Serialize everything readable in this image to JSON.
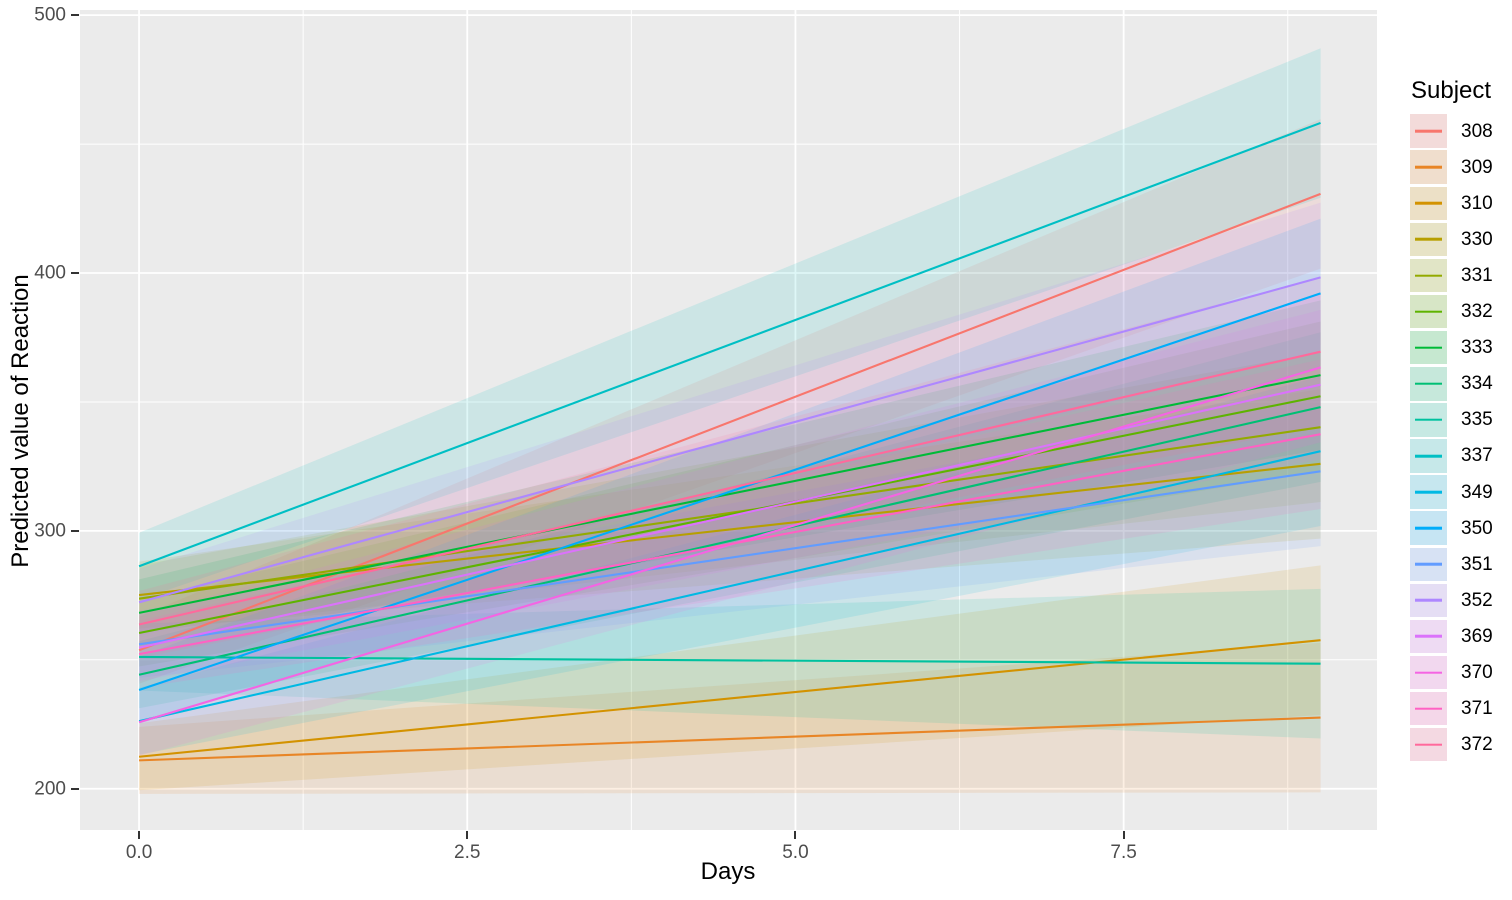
{
  "figure": {
    "background": "#FFFFFF",
    "panel_background": "#EBEBEB",
    "grid_color": "#FFFFFF",
    "axis_tick_color": "#333333",
    "tick_label_color": "#4D4D4D",
    "title_color": "#000000"
  },
  "chart_data": {
    "type": "line",
    "title": "",
    "xlabel": "Days",
    "ylabel": "Predicted value of Reaction",
    "legend_title": "Subject",
    "legend_position": "right",
    "grid": true,
    "xlim": [
      -0.45,
      9.43
    ],
    "ylim": [
      184,
      502
    ],
    "x": [
      0,
      9
    ],
    "x_major_ticks": [
      {
        "value": 0.0,
        "label": "0.0"
      },
      {
        "value": 2.5,
        "label": "2.5"
      },
      {
        "value": 5.0,
        "label": "5.0"
      },
      {
        "value": 7.5,
        "label": "7.5"
      }
    ],
    "x_minor_ticks": [
      1.25,
      3.75,
      6.25,
      8.75
    ],
    "y_major_ticks": [
      {
        "value": 200,
        "label": "200"
      },
      {
        "value": 300,
        "label": "300"
      },
      {
        "value": 400,
        "label": "400"
      },
      {
        "value": 500,
        "label": "500"
      }
    ],
    "y_minor_ticks": [
      250,
      350,
      450
    ],
    "ribbon_alpha": 0.13,
    "legend_swatch_alpha": 0.18,
    "line_width": 2.1,
    "series": [
      {
        "name": "308",
        "color": "#F8766D",
        "y": [
          253.7,
          430.7
        ],
        "ribbon_lower": [
          240.7,
          401.7
        ],
        "ribbon_upper": [
          266.7,
          459.7
        ]
      },
      {
        "name": "309",
        "color": "#E88526",
        "y": [
          211.0,
          227.6
        ],
        "ribbon_lower": [
          198.0,
          198.6
        ],
        "ribbon_upper": [
          224.0,
          256.6
        ]
      },
      {
        "name": "310",
        "color": "#D39200",
        "y": [
          212.4,
          257.6
        ],
        "ribbon_lower": [
          199.4,
          228.6
        ],
        "ribbon_upper": [
          225.4,
          286.6
        ]
      },
      {
        "name": "330",
        "color": "#B79F00",
        "y": [
          275.1,
          326.0
        ],
        "ribbon_lower": [
          262.1,
          297.0
        ],
        "ribbon_upper": [
          288.1,
          355.0
        ]
      },
      {
        "name": "331",
        "color": "#93AA00",
        "y": [
          273.7,
          340.2
        ],
        "ribbon_lower": [
          260.7,
          311.2
        ],
        "ribbon_upper": [
          286.7,
          369.2
        ]
      },
      {
        "name": "332",
        "color": "#5EB300",
        "y": [
          260.4,
          352.2
        ],
        "ribbon_lower": [
          247.4,
          323.2
        ],
        "ribbon_upper": [
          273.4,
          381.2
        ]
      },
      {
        "name": "333",
        "color": "#00BA38",
        "y": [
          268.2,
          360.4
        ],
        "ribbon_lower": [
          255.2,
          331.4
        ],
        "ribbon_upper": [
          281.2,
          389.4
        ]
      },
      {
        "name": "334",
        "color": "#00BF74",
        "y": [
          244.2,
          348.0
        ],
        "ribbon_lower": [
          231.2,
          319.0
        ],
        "ribbon_upper": [
          257.2,
          377.0
        ]
      },
      {
        "name": "335",
        "color": "#00C19F",
        "y": [
          251.1,
          248.5
        ],
        "ribbon_lower": [
          238.1,
          219.5
        ],
        "ribbon_upper": [
          264.1,
          277.5
        ]
      },
      {
        "name": "337",
        "color": "#00BFC4",
        "y": [
          286.3,
          458.2
        ],
        "ribbon_lower": [
          273.3,
          429.2
        ],
        "ribbon_upper": [
          299.3,
          487.2
        ]
      },
      {
        "name": "349",
        "color": "#00B9E3",
        "y": [
          226.2,
          330.9
        ],
        "ribbon_lower": [
          213.2,
          301.9
        ],
        "ribbon_upper": [
          239.2,
          359.9
        ]
      },
      {
        "name": "350",
        "color": "#00ADFA",
        "y": [
          238.3,
          392.1
        ],
        "ribbon_lower": [
          225.3,
          363.1
        ],
        "ribbon_upper": [
          251.3,
          421.1
        ]
      },
      {
        "name": "351",
        "color": "#619CFF",
        "y": [
          256.0,
          323.1
        ],
        "ribbon_lower": [
          243.0,
          294.1
        ],
        "ribbon_upper": [
          269.0,
          352.1
        ]
      },
      {
        "name": "352",
        "color": "#AE87FF",
        "y": [
          272.3,
          398.3
        ],
        "ribbon_lower": [
          259.3,
          369.3
        ],
        "ribbon_upper": [
          285.3,
          427.3
        ]
      },
      {
        "name": "369",
        "color": "#DB72FB",
        "y": [
          254.7,
          356.7
        ],
        "ribbon_lower": [
          241.7,
          327.7
        ],
        "ribbon_upper": [
          267.7,
          385.7
        ]
      },
      {
        "name": "370",
        "color": "#F564E3",
        "y": [
          225.8,
          363.4
        ],
        "ribbon_lower": [
          212.8,
          334.4
        ],
        "ribbon_upper": [
          238.8,
          392.4
        ]
      },
      {
        "name": "371",
        "color": "#FF61C3",
        "y": [
          252.2,
          337.5
        ],
        "ribbon_lower": [
          239.2,
          308.5
        ],
        "ribbon_upper": [
          265.2,
          366.5
        ]
      },
      {
        "name": "372",
        "color": "#FF699C",
        "y": [
          263.7,
          369.5
        ],
        "ribbon_lower": [
          250.7,
          340.5
        ],
        "ribbon_upper": [
          276.7,
          398.5
        ]
      }
    ]
  }
}
